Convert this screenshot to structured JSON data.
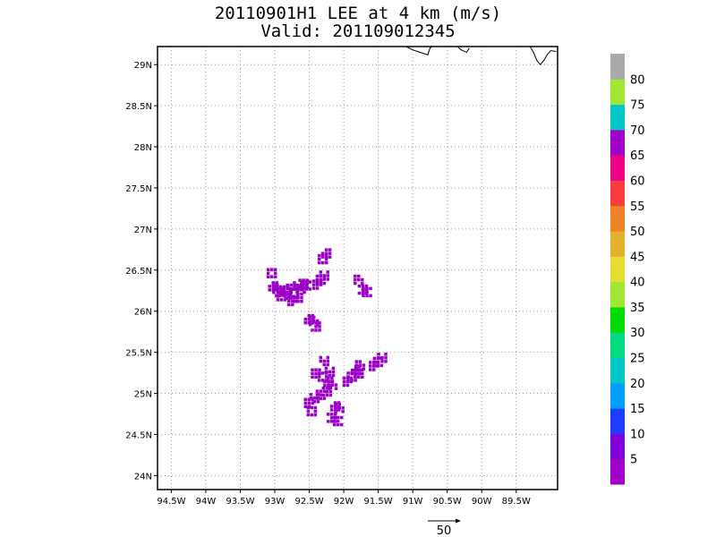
{
  "title": {
    "line1": "20110901H1 LEE at 4 km (m/s)",
    "line2": "Valid: 201109012345"
  },
  "map": {
    "lon_range": [
      -94.7,
      -88.9
    ],
    "lat_range": [
      23.83,
      29.22
    ],
    "lon_ticks": [
      {
        "value": -94.5,
        "label": "94.5W"
      },
      {
        "value": -94,
        "label": "94W"
      },
      {
        "value": -93.5,
        "label": "93.5W"
      },
      {
        "value": -93,
        "label": "93W"
      },
      {
        "value": -92.5,
        "label": "92.5W"
      },
      {
        "value": -92,
        "label": "92W"
      },
      {
        "value": -91.5,
        "label": "91.5W"
      },
      {
        "value": -91,
        "label": "91W"
      },
      {
        "value": -90.5,
        "label": "90.5W"
      },
      {
        "value": -90,
        "label": "90W"
      },
      {
        "value": -89.5,
        "label": "89.5W"
      }
    ],
    "lat_ticks": [
      {
        "value": 24,
        "label": "24N"
      },
      {
        "value": 24.5,
        "label": "24.5N"
      },
      {
        "value": 25,
        "label": "25N"
      },
      {
        "value": 25.5,
        "label": "25.5N"
      },
      {
        "value": 26,
        "label": "26N"
      },
      {
        "value": 26.5,
        "label": "26.5N"
      },
      {
        "value": 27,
        "label": "27N"
      },
      {
        "value": 27.5,
        "label": "27.5N"
      },
      {
        "value": 28,
        "label": "28N"
      },
      {
        "value": 28.5,
        "label": "28.5N"
      },
      {
        "value": 29,
        "label": "29N"
      }
    ],
    "grid": true,
    "coastline": [
      [
        [
          -91.1,
          29.22
        ],
        [
          -91.0,
          29.18
        ],
        [
          -90.9,
          29.15
        ],
        [
          -90.78,
          29.12
        ],
        [
          -90.75,
          29.2
        ],
        [
          -90.72,
          29.22
        ]
      ],
      [
        [
          -90.35,
          29.22
        ],
        [
          -90.3,
          29.18
        ],
        [
          -90.22,
          29.15
        ],
        [
          -90.18,
          29.2
        ]
      ],
      [
        [
          -89.3,
          29.22
        ],
        [
          -89.25,
          29.15
        ],
        [
          -89.2,
          29.05
        ],
        [
          -89.15,
          29.0
        ],
        [
          -89.1,
          29.05
        ],
        [
          -89.05,
          29.12
        ],
        [
          -89.0,
          29.17
        ],
        [
          -88.92,
          29.16
        ]
      ]
    ],
    "echo_color": "#9b00c8",
    "echoes": [
      {
        "lon": -93.04,
        "lat": 26.46
      },
      {
        "lon": -93.02,
        "lat": 26.3
      },
      {
        "lon": -92.96,
        "lat": 26.27
      },
      {
        "lon": -92.92,
        "lat": 26.23
      },
      {
        "lon": -92.86,
        "lat": 26.25
      },
      {
        "lon": -92.82,
        "lat": 26.2
      },
      {
        "lon": -92.76,
        "lat": 26.27
      },
      {
        "lon": -92.72,
        "lat": 26.22
      },
      {
        "lon": -92.66,
        "lat": 26.16
      },
      {
        "lon": -92.62,
        "lat": 26.27
      },
      {
        "lon": -92.58,
        "lat": 26.33
      },
      {
        "lon": -92.54,
        "lat": 26.31
      },
      {
        "lon": -92.66,
        "lat": 26.3
      },
      {
        "lon": -92.74,
        "lat": 26.12
      },
      {
        "lon": -92.9,
        "lat": 26.18
      },
      {
        "lon": -92.5,
        "lat": 25.9
      },
      {
        "lon": -92.43,
        "lat": 25.88
      },
      {
        "lon": -92.4,
        "lat": 25.81
      },
      {
        "lon": -92.33,
        "lat": 26.38
      },
      {
        "lon": -92.28,
        "lat": 26.43
      },
      {
        "lon": -92.38,
        "lat": 26.32
      },
      {
        "lon": -92.3,
        "lat": 26.63
      },
      {
        "lon": -92.25,
        "lat": 26.7
      },
      {
        "lon": -91.78,
        "lat": 26.38
      },
      {
        "lon": -91.72,
        "lat": 26.26
      },
      {
        "lon": -91.66,
        "lat": 26.23
      },
      {
        "lon": -92.28,
        "lat": 25.39
      },
      {
        "lon": -92.4,
        "lat": 25.24
      },
      {
        "lon": -92.3,
        "lat": 25.2
      },
      {
        "lon": -92.22,
        "lat": 25.14
      },
      {
        "lon": -92.16,
        "lat": 25.1
      },
      {
        "lon": -92.24,
        "lat": 25.02
      },
      {
        "lon": -92.33,
        "lat": 24.98
      },
      {
        "lon": -92.42,
        "lat": 24.94
      },
      {
        "lon": -92.5,
        "lat": 24.88
      },
      {
        "lon": -92.46,
        "lat": 24.78
      },
      {
        "lon": -92.12,
        "lat": 24.84
      },
      {
        "lon": -92.06,
        "lat": 24.82
      },
      {
        "lon": -92.17,
        "lat": 24.7
      },
      {
        "lon": -92.08,
        "lat": 24.66
      },
      {
        "lon": -92.2,
        "lat": 25.26
      },
      {
        "lon": -91.94,
        "lat": 25.14
      },
      {
        "lon": -91.88,
        "lat": 25.2
      },
      {
        "lon": -91.82,
        "lat": 25.28
      },
      {
        "lon": -91.76,
        "lat": 25.34
      },
      {
        "lon": -91.78,
        "lat": 25.24
      },
      {
        "lon": -91.5,
        "lat": 25.38
      },
      {
        "lon": -91.44,
        "lat": 25.43
      },
      {
        "lon": -91.56,
        "lat": 25.33
      }
    ]
  },
  "colorbar": {
    "colors": [
      "#a000c8",
      "#8200dc",
      "#1e3cff",
      "#00a0ff",
      "#00c8c8",
      "#00dc82",
      "#00dc00",
      "#a0e632",
      "#e6dc32",
      "#e6af2d",
      "#f08228",
      "#fa3c3c",
      "#f00082",
      "#a000c8",
      "#00c8c8",
      "#a0e632",
      "#aaaaaa"
    ],
    "labels": [
      "5",
      "10",
      "15",
      "20",
      "25",
      "30",
      "35",
      "40",
      "45",
      "50",
      "55",
      "60",
      "65",
      "70",
      "75",
      "80"
    ]
  },
  "reference_vector": {
    "label": "50"
  }
}
